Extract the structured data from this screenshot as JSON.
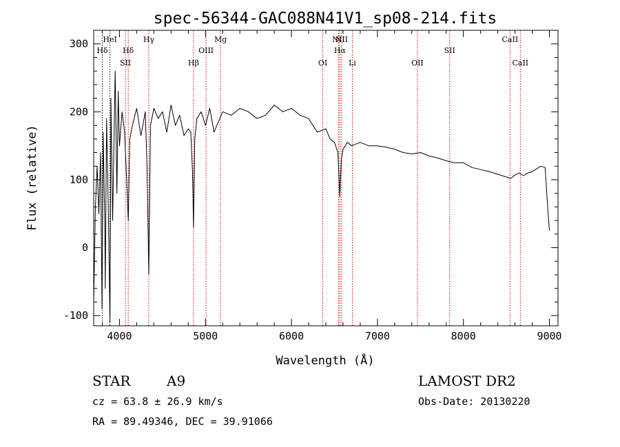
{
  "chart_data": {
    "type": "line",
    "title": "spec-56344-GAC088N41V1_sp08-214.fits",
    "xlabel": "Wavelength (Å)",
    "ylabel": "Flux (relative)",
    "xlim": [
      3700,
      9100
    ],
    "ylim": [
      -115,
      320
    ],
    "xticks": [
      4000,
      5000,
      6000,
      7000,
      8000,
      9000
    ],
    "yticks": [
      -100,
      0,
      100,
      200,
      300
    ],
    "grid": false,
    "line_color": "#000000",
    "marker_color": "#cc0000",
    "series": [
      {
        "x": [
          3700,
          3720,
          3740,
          3760,
          3780,
          3797,
          3810,
          3830,
          3835,
          3850,
          3870,
          3889,
          3900,
          3920,
          3950,
          3970,
          3985,
          4000,
          4030,
          4060,
          4080,
          4102,
          4120,
          4150,
          4200,
          4250,
          4300,
          4320,
          4341,
          4360,
          4400,
          4450,
          4500,
          4550,
          4600,
          4650,
          4700,
          4750,
          4800,
          4830,
          4850,
          4861,
          4875,
          4900,
          4950,
          5000,
          5050,
          5100,
          5150,
          5200,
          5300,
          5400,
          5500,
          5600,
          5700,
          5800,
          5900,
          6000,
          6100,
          6200,
          6300,
          6400,
          6450,
          6500,
          6540,
          6563,
          6580,
          6600,
          6650,
          6700,
          6800,
          6900,
          7000,
          7100,
          7200,
          7300,
          7400,
          7500,
          7600,
          7700,
          7800,
          7900,
          8000,
          8100,
          8200,
          8300,
          8400,
          8500,
          8550,
          8600,
          8650,
          8700,
          8750,
          8800,
          8850,
          8900,
          8950,
          8980,
          9000
        ],
        "y": [
          -80,
          60,
          120,
          50,
          140,
          -90,
          170,
          30,
          -60,
          190,
          60,
          -110,
          220,
          40,
          260,
          80,
          230,
          150,
          200,
          170,
          110,
          40,
          160,
          180,
          205,
          165,
          200,
          120,
          -40,
          180,
          205,
          190,
          200,
          170,
          210,
          180,
          195,
          165,
          175,
          170,
          110,
          30,
          160,
          190,
          200,
          180,
          205,
          170,
          185,
          200,
          195,
          205,
          200,
          190,
          195,
          210,
          200,
          205,
          195,
          190,
          170,
          175,
          160,
          155,
          140,
          75,
          130,
          145,
          155,
          150,
          155,
          150,
          150,
          148,
          145,
          140,
          138,
          140,
          135,
          132,
          128,
          125,
          125,
          118,
          115,
          112,
          108,
          104,
          102,
          107,
          110,
          106,
          110,
          112,
          116,
          120,
          118,
          60,
          25
        ]
      }
    ],
    "lines": [
      {
        "label": "Hδ",
        "x": 3800,
        "row": 2,
        "stroke": "#000000"
      },
      {
        "label": "HeI",
        "x": 3889,
        "row": 1,
        "stroke": "#000000"
      },
      {
        "label": "SII",
        "x": 4069,
        "row": 3,
        "stroke": "#cc0000"
      },
      {
        "label": "Hδ",
        "x": 4102,
        "row": 2,
        "stroke": "#cc0000"
      },
      {
        "label": "Hγ",
        "x": 4341,
        "row": 1,
        "stroke": "#cc0000"
      },
      {
        "label": "Hβ",
        "x": 4861,
        "row": 3,
        "stroke": "#cc0000"
      },
      {
        "label": "OIII",
        "x": 5007,
        "row": 2,
        "stroke": "#cc0000"
      },
      {
        "label": "Mg",
        "x": 5175,
        "row": 1,
        "stroke": "#cc0000"
      },
      {
        "label": "OI",
        "x": 6364,
        "row": 3,
        "stroke": "#cc0000"
      },
      {
        "label": "NII",
        "x": 6548,
        "row": 1,
        "stroke": "#cc0000"
      },
      {
        "label": "Hα",
        "x": 6563,
        "row": 2,
        "stroke": "#cc0000"
      },
      {
        "label": "NII",
        "x": 6584,
        "row": 1,
        "stroke": "#cc0000"
      },
      {
        "label": "Li",
        "x": 6708,
        "row": 3,
        "stroke": "#cc0000"
      },
      {
        "label": "OII",
        "x": 7465,
        "row": 3,
        "stroke": "#cc0000"
      },
      {
        "label": "SII",
        "x": 7840,
        "row": 2,
        "stroke": "#cc0000"
      },
      {
        "label": "CaII",
        "x": 8542,
        "row": 1,
        "stroke": "#cc0000"
      },
      {
        "label": "CaII",
        "x": 8662,
        "row": 3,
        "stroke": "#cc0000"
      }
    ]
  },
  "info": {
    "class_label": "STAR",
    "subclass": "A9",
    "cz": "cz = 63.8 ± 26.9 km/s",
    "coords": "RA =  89.49346, DEC =  39.91066",
    "survey": "LAMOST DR2",
    "obs_date": "Obs-Date: 20130220"
  }
}
